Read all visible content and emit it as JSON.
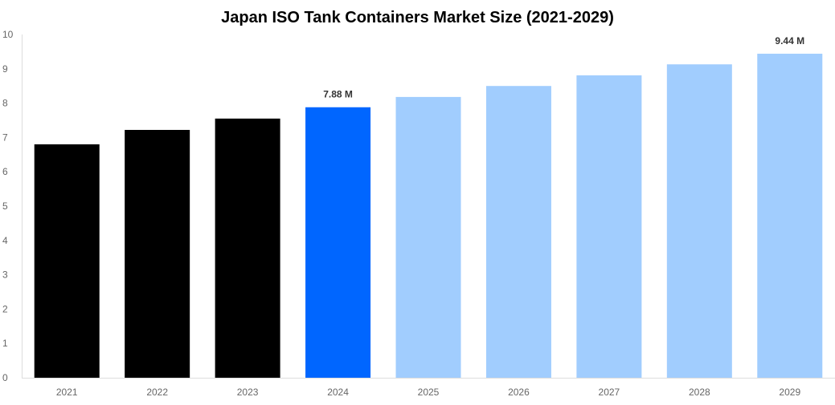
{
  "chart_data": {
    "type": "bar",
    "title": "Japan ISO Tank Containers Market Size (2021-2029)",
    "xlabel": "",
    "ylabel": "",
    "categories": [
      "2021",
      "2022",
      "2023",
      "2024",
      "2025",
      "2026",
      "2027",
      "2028",
      "2029"
    ],
    "values": [
      6.8,
      7.22,
      7.55,
      7.88,
      8.18,
      8.5,
      8.81,
      9.13,
      9.44
    ],
    "data_labels": {
      "3": "7.88 M",
      "8": "9.44 M"
    },
    "ylim": [
      0,
      10
    ],
    "yticks": [
      "0",
      "1",
      "2",
      "3",
      "4",
      "5",
      "6",
      "7",
      "8",
      "9",
      "10"
    ],
    "grid": false,
    "legend": "none",
    "colors": [
      "#000000",
      "#000000",
      "#000000",
      "#0066ff",
      "#a1cdfe",
      "#a1cdfe",
      "#a1cdfe",
      "#a1cdfe",
      "#a1cdfe"
    ]
  }
}
